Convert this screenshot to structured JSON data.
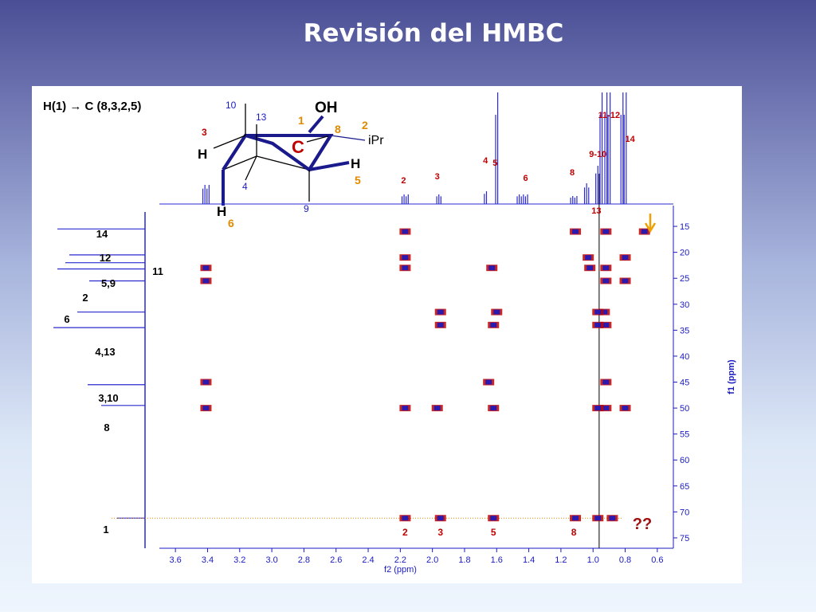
{
  "slide": {
    "title": "Revisión del HMBC"
  },
  "panel": {
    "correlation_label": "H(1) → C (8,3,2,5)",
    "question": "??"
  },
  "structure": {
    "labels": {
      "oh": "OH",
      "ipr": "iPr",
      "c": "C",
      "h_left": "H",
      "h_right": "H",
      "h_bottom": "H",
      "n10": "10",
      "n13": "13",
      "n1": "1",
      "n8": "8",
      "n2": "2",
      "n3": "3",
      "n5": "5",
      "n4": "4",
      "n9": "9",
      "n6": "6"
    }
  },
  "colors": {
    "red": "#c00000",
    "blue": "#1a1ac0",
    "orange": "#e08a00",
    "dark_red": "#a01010"
  },
  "chart_data": {
    "type": "heatmap",
    "xlabel": "f2 (ppm)",
    "ylabel": "f1 (ppm)",
    "xlim": [
      3.7,
      0.5
    ],
    "ylim": [
      11,
      77
    ],
    "x_ticks": [
      "3.6",
      "3.4",
      "3.2",
      "3.0",
      "2.8",
      "2.6",
      "2.4",
      "2.2",
      "2.0",
      "1.8",
      "1.6",
      "1.4",
      "1.2",
      "1.0",
      "0.8",
      "0.6"
    ],
    "y_ticks": [
      "15",
      "20",
      "25",
      "30",
      "35",
      "40",
      "45",
      "50",
      "55",
      "60",
      "65",
      "70",
      "75"
    ],
    "proton_spectrum_labels": [
      {
        "text": "2",
        "x": 2.18
      },
      {
        "text": "3",
        "x": 1.97
      },
      {
        "text": "4",
        "x": 1.67
      },
      {
        "text": "5",
        "x": 1.61
      },
      {
        "text": "6",
        "x": 1.42
      },
      {
        "text": "8",
        "x": 1.13
      },
      {
        "text": "9-10",
        "x": 0.97
      },
      {
        "text": "11-12",
        "x": 0.9
      },
      {
        "text": "14",
        "x": 0.77
      },
      {
        "text": "13",
        "x": 0.93
      }
    ],
    "carbon_labels": [
      {
        "text": "14",
        "y": 15.5
      },
      {
        "text": "12",
        "y": 20.5
      },
      {
        "text": "11",
        "y": 22.0
      },
      {
        "text": "5,9",
        "y": 23.2
      },
      {
        "text": "2",
        "y": 25.5
      },
      {
        "text": "6",
        "y": 31.5
      },
      {
        "text": "4,13",
        "y": 34.5
      },
      {
        "text": "3,10",
        "y": 45.5
      },
      {
        "text": "8",
        "y": 49.5
      },
      {
        "text": "1",
        "y": 71.2
      }
    ],
    "row1_labels": [
      {
        "text": "2",
        "x": 2.17
      },
      {
        "text": "3",
        "x": 1.95
      },
      {
        "text": "5",
        "x": 1.62
      },
      {
        "text": "8",
        "x": 1.12
      }
    ],
    "cross_peaks": [
      [
        2.17,
        16
      ],
      [
        2.17,
        21
      ],
      [
        2.17,
        23
      ],
      [
        2.17,
        50
      ],
      [
        2.17,
        71.2
      ],
      [
        3.41,
        23
      ],
      [
        3.41,
        25.5
      ],
      [
        3.41,
        45
      ],
      [
        3.41,
        50
      ],
      [
        1.95,
        31.5
      ],
      [
        1.95,
        34
      ],
      [
        1.97,
        50
      ],
      [
        1.95,
        71.2
      ],
      [
        1.6,
        31.5
      ],
      [
        1.62,
        34
      ],
      [
        1.62,
        50
      ],
      [
        1.65,
        45
      ],
      [
        1.63,
        23
      ],
      [
        1.62,
        71.2
      ],
      [
        1.11,
        16
      ],
      [
        1.11,
        71.2
      ],
      [
        1.03,
        21
      ],
      [
        1.02,
        23
      ],
      [
        0.92,
        16
      ],
      [
        0.92,
        25.5
      ],
      [
        0.93,
        31.5
      ],
      [
        0.92,
        34
      ],
      [
        0.92,
        45
      ],
      [
        0.92,
        50
      ],
      [
        0.92,
        23
      ],
      [
        0.97,
        31.5
      ],
      [
        0.97,
        34
      ],
      [
        0.97,
        50
      ],
      [
        0.97,
        71.2
      ],
      [
        0.88,
        71.2
      ],
      [
        0.8,
        21
      ],
      [
        0.8,
        25.5
      ],
      [
        0.8,
        50
      ],
      [
        0.68,
        16
      ]
    ],
    "guide_line_x": 0.962,
    "guide_line_y": 71.2
  }
}
